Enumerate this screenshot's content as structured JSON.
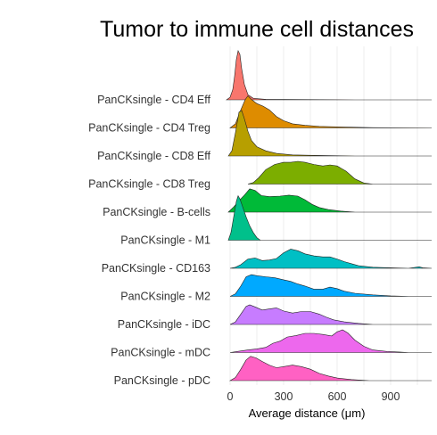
{
  "chart_data": {
    "type": "area",
    "subtype": "ridgeline",
    "title": "Tumor to immune cell distances",
    "xlabel": "Average distance (μm)",
    "ylabel": "",
    "xlim": [
      -75,
      1130
    ],
    "x_ticks": [
      0,
      300,
      600,
      900
    ],
    "grid": "vertical",
    "x_grid": [
      150,
      450,
      750,
      1050
    ],
    "legend": "none",
    "series": [
      {
        "name": "PanCKsingle - CD4 Eff",
        "color": "#F8766D",
        "density": [
          [
            -20,
            0
          ],
          [
            0,
            0.05
          ],
          [
            15,
            0.2
          ],
          [
            25,
            0.45
          ],
          [
            35,
            0.78
          ],
          [
            45,
            0.95
          ],
          [
            55,
            0.88
          ],
          [
            65,
            0.6
          ],
          [
            80,
            0.3
          ],
          [
            100,
            0.1
          ],
          [
            130,
            0.03
          ],
          [
            200,
            0.01
          ],
          [
            400,
            0.005
          ],
          [
            700,
            0
          ],
          [
            1130,
            0
          ]
        ]
      },
      {
        "name": "PanCKsingle - CD4 Treg",
        "color": "#DE8C00",
        "density": [
          [
            0,
            0
          ],
          [
            30,
            0.08
          ],
          [
            60,
            0.35
          ],
          [
            85,
            0.55
          ],
          [
            100,
            0.62
          ],
          [
            120,
            0.55
          ],
          [
            150,
            0.47
          ],
          [
            185,
            0.42
          ],
          [
            220,
            0.35
          ],
          [
            260,
            0.22
          ],
          [
            300,
            0.14
          ],
          [
            350,
            0.08
          ],
          [
            420,
            0.05
          ],
          [
            500,
            0.03
          ],
          [
            650,
            0.015
          ],
          [
            800,
            0.005
          ],
          [
            1130,
            0
          ]
        ]
      },
      {
        "name": "PanCKsingle - CD8 Eff",
        "color": "#B79F00",
        "density": [
          [
            -10,
            0
          ],
          [
            10,
            0.1
          ],
          [
            30,
            0.45
          ],
          [
            50,
            0.85
          ],
          [
            65,
            0.88
          ],
          [
            80,
            0.72
          ],
          [
            100,
            0.48
          ],
          [
            120,
            0.3
          ],
          [
            150,
            0.18
          ],
          [
            200,
            0.1
          ],
          [
            260,
            0.05
          ],
          [
            350,
            0.02
          ],
          [
            500,
            0.01
          ],
          [
            700,
            0
          ],
          [
            1130,
            0
          ]
        ]
      },
      {
        "name": "PanCKsingle - CD8 Treg",
        "color": "#7CAE00",
        "density": [
          [
            100,
            0
          ],
          [
            130,
            0.03
          ],
          [
            160,
            0.12
          ],
          [
            200,
            0.28
          ],
          [
            250,
            0.38
          ],
          [
            300,
            0.42
          ],
          [
            340,
            0.42
          ],
          [
            380,
            0.44
          ],
          [
            420,
            0.42
          ],
          [
            470,
            0.38
          ],
          [
            520,
            0.35
          ],
          [
            560,
            0.37
          ],
          [
            600,
            0.35
          ],
          [
            650,
            0.25
          ],
          [
            700,
            0.1
          ],
          [
            750,
            0.02
          ],
          [
            800,
            0
          ],
          [
            1130,
            0
          ]
        ]
      },
      {
        "name": "PanCKsingle - B-cells",
        "color": "#00BA38",
        "density": [
          [
            -10,
            0
          ],
          [
            20,
            0.1
          ],
          [
            50,
            0.22
          ],
          [
            80,
            0.33
          ],
          [
            110,
            0.45
          ],
          [
            140,
            0.42
          ],
          [
            175,
            0.32
          ],
          [
            220,
            0.3
          ],
          [
            280,
            0.31
          ],
          [
            330,
            0.33
          ],
          [
            380,
            0.31
          ],
          [
            420,
            0.24
          ],
          [
            460,
            0.15
          ],
          [
            500,
            0.09
          ],
          [
            550,
            0.05
          ],
          [
            620,
            0.02
          ],
          [
            700,
            0
          ],
          [
            1130,
            0
          ]
        ]
      },
      {
        "name": "PanCKsingle - M1",
        "color": "#00C08B",
        "density": [
          [
            -10,
            0
          ],
          [
            5,
            0.15
          ],
          [
            20,
            0.45
          ],
          [
            35,
            0.75
          ],
          [
            45,
            0.86
          ],
          [
            55,
            0.8
          ],
          [
            70,
            0.65
          ],
          [
            90,
            0.45
          ],
          [
            110,
            0.28
          ],
          [
            130,
            0.15
          ],
          [
            150,
            0.05
          ],
          [
            170,
            0
          ],
          [
            1130,
            0
          ]
        ]
      },
      {
        "name": "PanCKsingle - CD163",
        "color": "#00BFC4",
        "density": [
          [
            0,
            0
          ],
          [
            30,
            0.02
          ],
          [
            60,
            0.07
          ],
          [
            100,
            0.18
          ],
          [
            140,
            0.2
          ],
          [
            180,
            0.15
          ],
          [
            220,
            0.16
          ],
          [
            260,
            0.19
          ],
          [
            300,
            0.3
          ],
          [
            340,
            0.37
          ],
          [
            380,
            0.34
          ],
          [
            420,
            0.28
          ],
          [
            470,
            0.24
          ],
          [
            520,
            0.22
          ],
          [
            560,
            0.22
          ],
          [
            600,
            0.18
          ],
          [
            640,
            0.13
          ],
          [
            680,
            0.09
          ],
          [
            720,
            0.05
          ],
          [
            800,
            0.02
          ],
          [
            900,
            0.01
          ],
          [
            1000,
            0
          ],
          [
            1060,
            0.03
          ],
          [
            1080,
            0.01
          ],
          [
            1130,
            0
          ]
        ]
      },
      {
        "name": "PanCKsingle - M2",
        "color": "#00A9FF",
        "density": [
          [
            0,
            0
          ],
          [
            30,
            0.05
          ],
          [
            60,
            0.2
          ],
          [
            90,
            0.38
          ],
          [
            120,
            0.42
          ],
          [
            150,
            0.4
          ],
          [
            200,
            0.38
          ],
          [
            250,
            0.36
          ],
          [
            300,
            0.32
          ],
          [
            340,
            0.29
          ],
          [
            380,
            0.24
          ],
          [
            420,
            0.2
          ],
          [
            470,
            0.14
          ],
          [
            520,
            0.14
          ],
          [
            560,
            0.18
          ],
          [
            600,
            0.15
          ],
          [
            640,
            0.1
          ],
          [
            700,
            0.06
          ],
          [
            800,
            0.03
          ],
          [
            900,
            0.01
          ],
          [
            1000,
            0
          ],
          [
            1130,
            0
          ]
        ]
      },
      {
        "name": "PanCKsingle - iDC",
        "color": "#C77CFF",
        "density": [
          [
            0,
            0
          ],
          [
            30,
            0.05
          ],
          [
            60,
            0.2
          ],
          [
            90,
            0.35
          ],
          [
            110,
            0.38
          ],
          [
            140,
            0.34
          ],
          [
            180,
            0.28
          ],
          [
            220,
            0.3
          ],
          [
            260,
            0.32
          ],
          [
            300,
            0.26
          ],
          [
            350,
            0.22
          ],
          [
            400,
            0.25
          ],
          [
            450,
            0.25
          ],
          [
            500,
            0.2
          ],
          [
            540,
            0.14
          ],
          [
            580,
            0.09
          ],
          [
            640,
            0.05
          ],
          [
            720,
            0.02
          ],
          [
            800,
            0
          ],
          [
            1130,
            0
          ]
        ]
      },
      {
        "name": "PanCKsingle - mDC",
        "color": "#ED68ED",
        "density": [
          [
            0,
            0
          ],
          [
            40,
            0.02
          ],
          [
            100,
            0.05
          ],
          [
            150,
            0.07
          ],
          [
            200,
            0.1
          ],
          [
            240,
            0.18
          ],
          [
            280,
            0.22
          ],
          [
            320,
            0.3
          ],
          [
            370,
            0.33
          ],
          [
            420,
            0.37
          ],
          [
            470,
            0.37
          ],
          [
            520,
            0.35
          ],
          [
            570,
            0.32
          ],
          [
            600,
            0.4
          ],
          [
            630,
            0.44
          ],
          [
            660,
            0.38
          ],
          [
            700,
            0.24
          ],
          [
            750,
            0.12
          ],
          [
            800,
            0.05
          ],
          [
            880,
            0.02
          ],
          [
            950,
            0.01
          ],
          [
            1000,
            0
          ],
          [
            1130,
            0
          ]
        ]
      },
      {
        "name": "PanCKsingle - pDC",
        "color": "#FF61C3",
        "density": [
          [
            0,
            0
          ],
          [
            30,
            0.06
          ],
          [
            60,
            0.22
          ],
          [
            90,
            0.4
          ],
          [
            115,
            0.47
          ],
          [
            145,
            0.44
          ],
          [
            180,
            0.37
          ],
          [
            220,
            0.3
          ],
          [
            260,
            0.25
          ],
          [
            300,
            0.27
          ],
          [
            350,
            0.3
          ],
          [
            400,
            0.27
          ],
          [
            450,
            0.22
          ],
          [
            500,
            0.14
          ],
          [
            550,
            0.09
          ],
          [
            600,
            0.05
          ],
          [
            680,
            0.02
          ],
          [
            780,
            0
          ],
          [
            1130,
            0
          ]
        ]
      }
    ]
  }
}
